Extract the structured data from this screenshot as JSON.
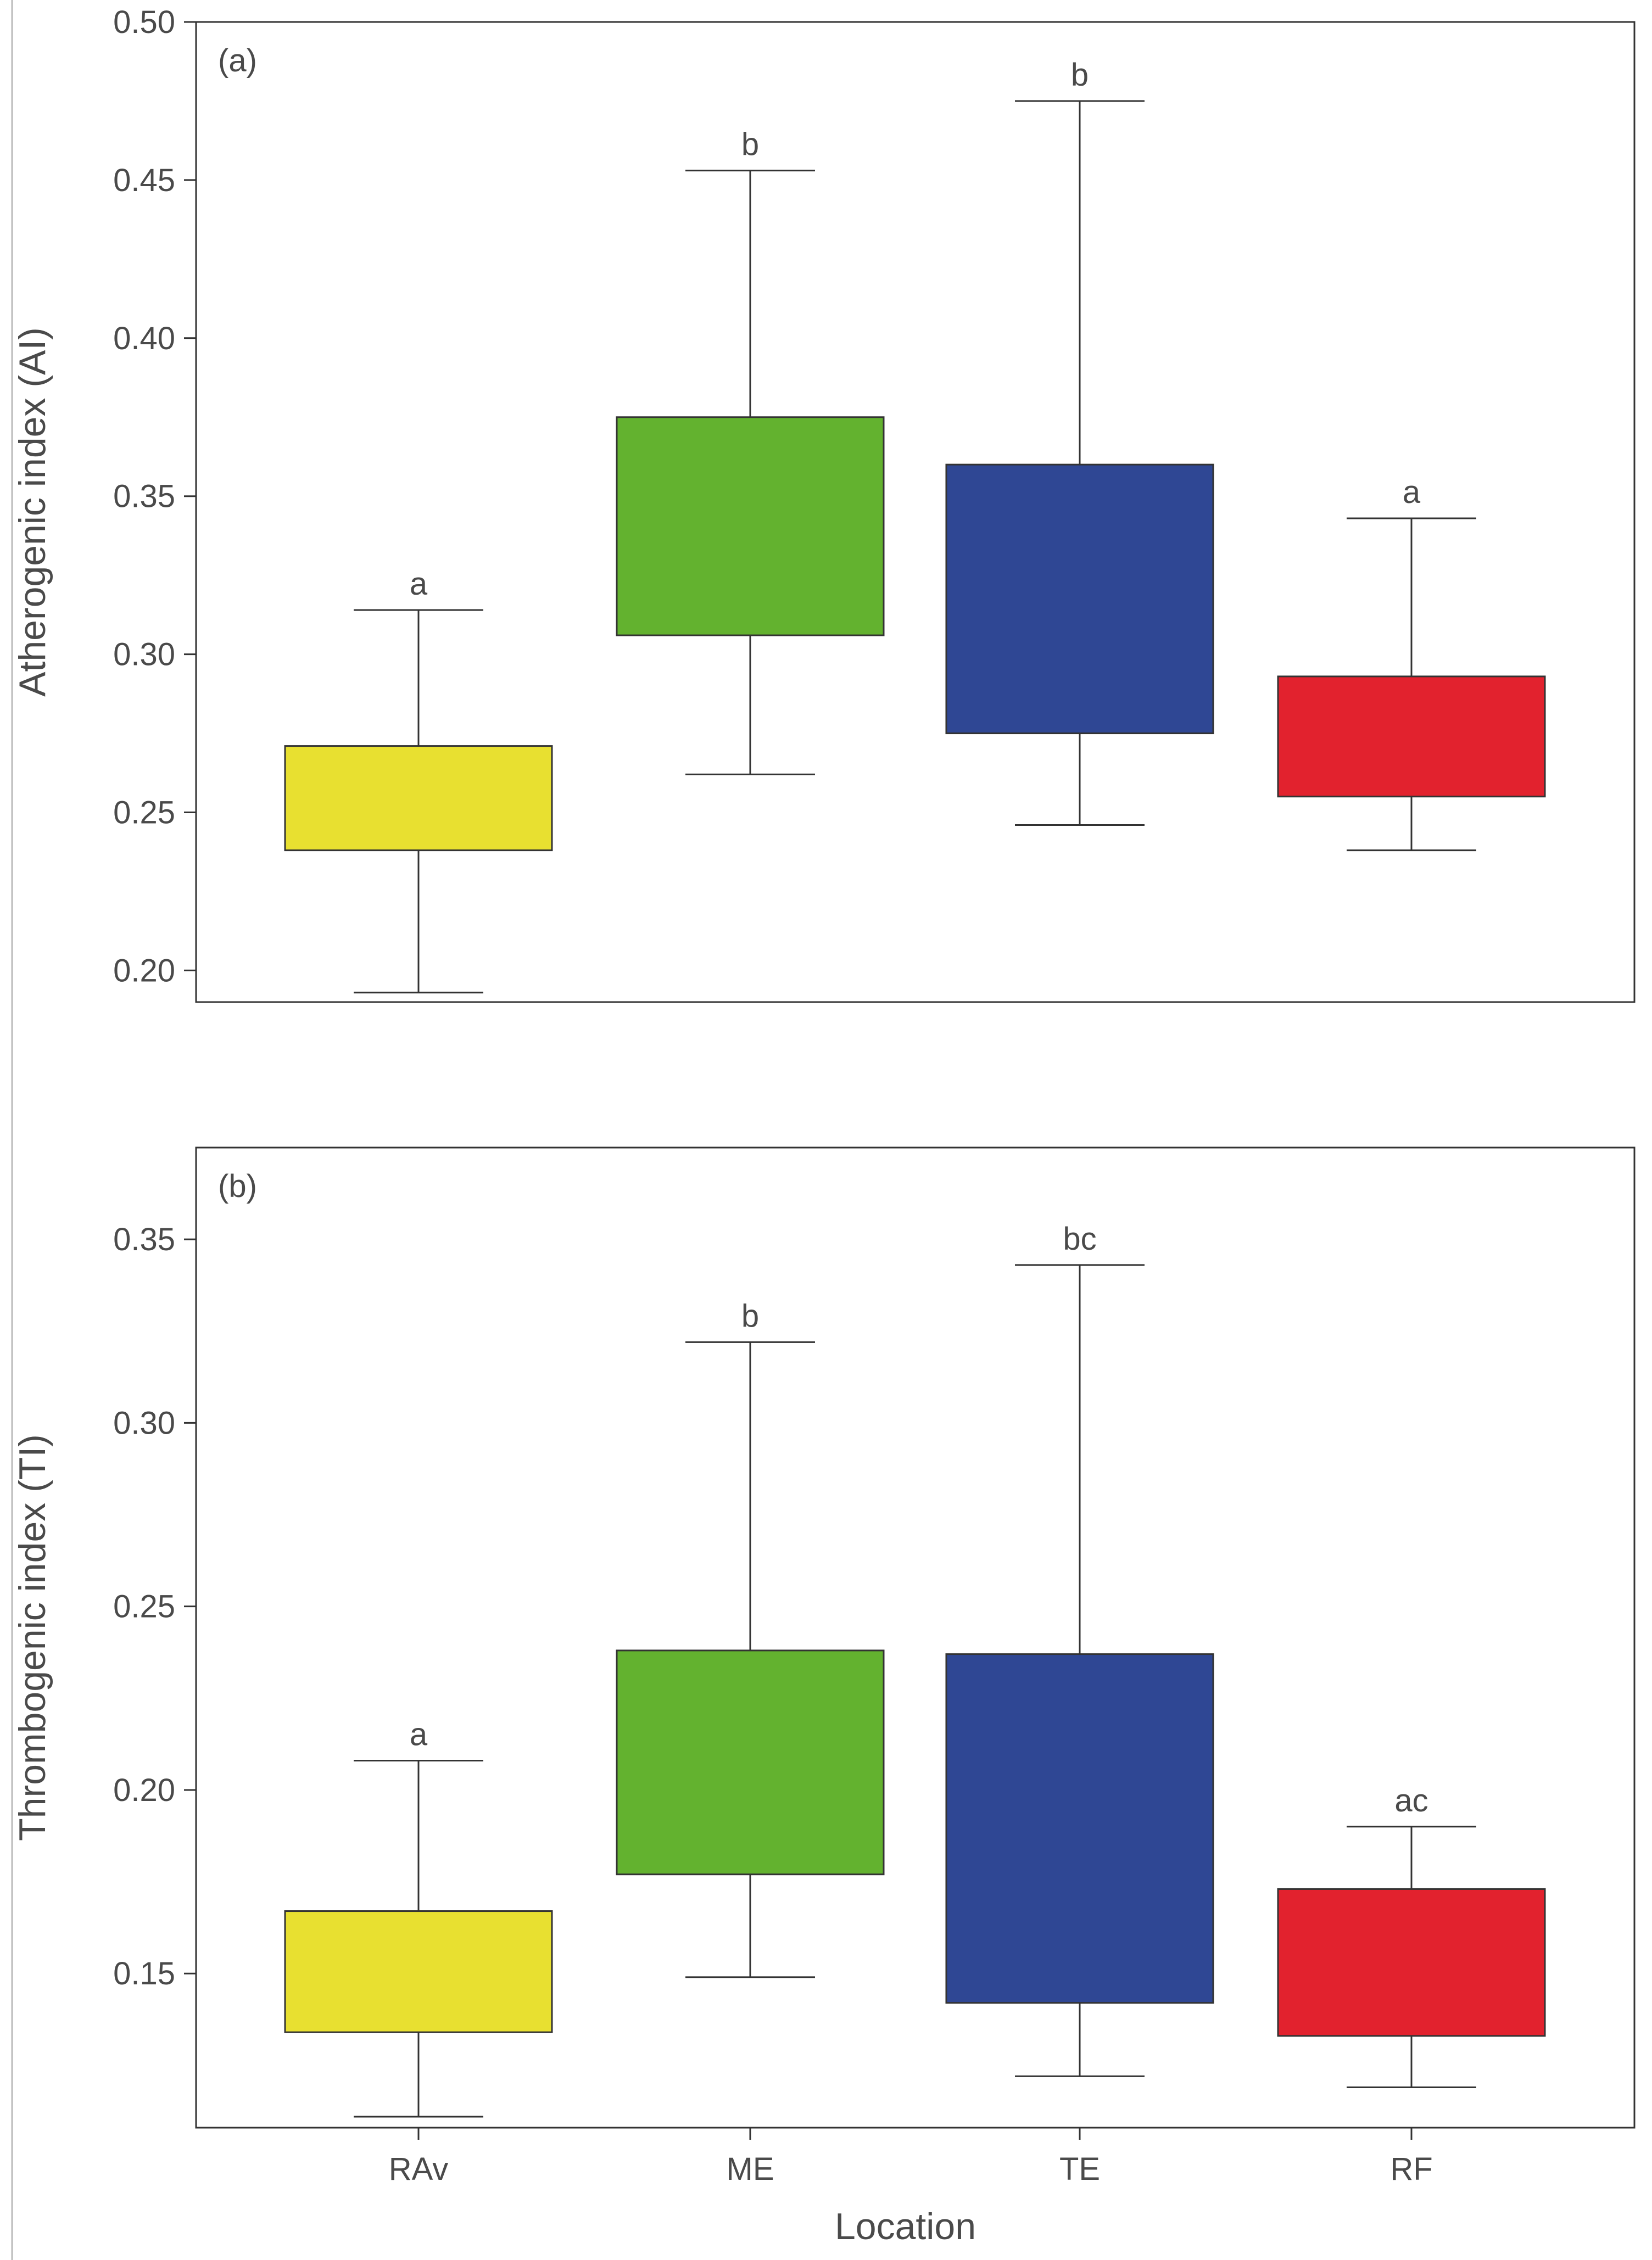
{
  "chart_data": [
    {
      "type": "box",
      "panel_label": "(a)",
      "title": "",
      "xlabel": "",
      "ylabel": "Atherogenic index (AI)",
      "ylim": [
        0.19,
        0.5
      ],
      "yticks": [
        "0.20",
        "0.25",
        "0.30",
        "0.35",
        "0.40",
        "0.45",
        "0.50"
      ],
      "ytick_values": [
        0.2,
        0.25,
        0.3,
        0.35,
        0.4,
        0.45,
        0.5
      ],
      "categories": [
        "RAv",
        "ME",
        "TE",
        "RF"
      ],
      "boxes": [
        {
          "category": "RAv",
          "min": 0.193,
          "q1": 0.238,
          "q3": 0.271,
          "max": 0.314,
          "letter": "a",
          "color": "#e8e030"
        },
        {
          "category": "ME",
          "min": 0.262,
          "q1": 0.306,
          "q3": 0.375,
          "max": 0.453,
          "letter": "b",
          "color": "#63b22f"
        },
        {
          "category": "TE",
          "min": 0.246,
          "q1": 0.275,
          "q3": 0.36,
          "max": 0.475,
          "letter": "b",
          "color": "#2f4794"
        },
        {
          "category": "RF",
          "min": 0.238,
          "q1": 0.255,
          "q3": 0.293,
          "max": 0.343,
          "letter": "a",
          "color": "#e2222e"
        }
      ],
      "grid": false
    },
    {
      "type": "box",
      "panel_label": "(b)",
      "title": "",
      "xlabel": "Location",
      "ylabel": "Thrombogenic index (TI)",
      "ylim": [
        0.108,
        0.375
      ],
      "yticks": [
        "0.15",
        "0.20",
        "0.25",
        "0.30",
        "0.35"
      ],
      "ytick_values": [
        0.15,
        0.2,
        0.25,
        0.3,
        0.35
      ],
      "categories": [
        "RAv",
        "ME",
        "TE",
        "RF"
      ],
      "boxes": [
        {
          "category": "RAv",
          "min": 0.111,
          "q1": 0.134,
          "q3": 0.167,
          "max": 0.208,
          "letter": "a",
          "color": "#e8e030"
        },
        {
          "category": "ME",
          "min": 0.149,
          "q1": 0.177,
          "q3": 0.238,
          "max": 0.322,
          "letter": "b",
          "color": "#63b22f"
        },
        {
          "category": "TE",
          "min": 0.122,
          "q1": 0.142,
          "q3": 0.237,
          "max": 0.343,
          "letter": "bc",
          "color": "#2f4794"
        },
        {
          "category": "RF",
          "min": 0.119,
          "q1": 0.133,
          "q3": 0.173,
          "max": 0.19,
          "letter": "ac",
          "color": "#e2222e"
        }
      ],
      "grid": false
    }
  ]
}
